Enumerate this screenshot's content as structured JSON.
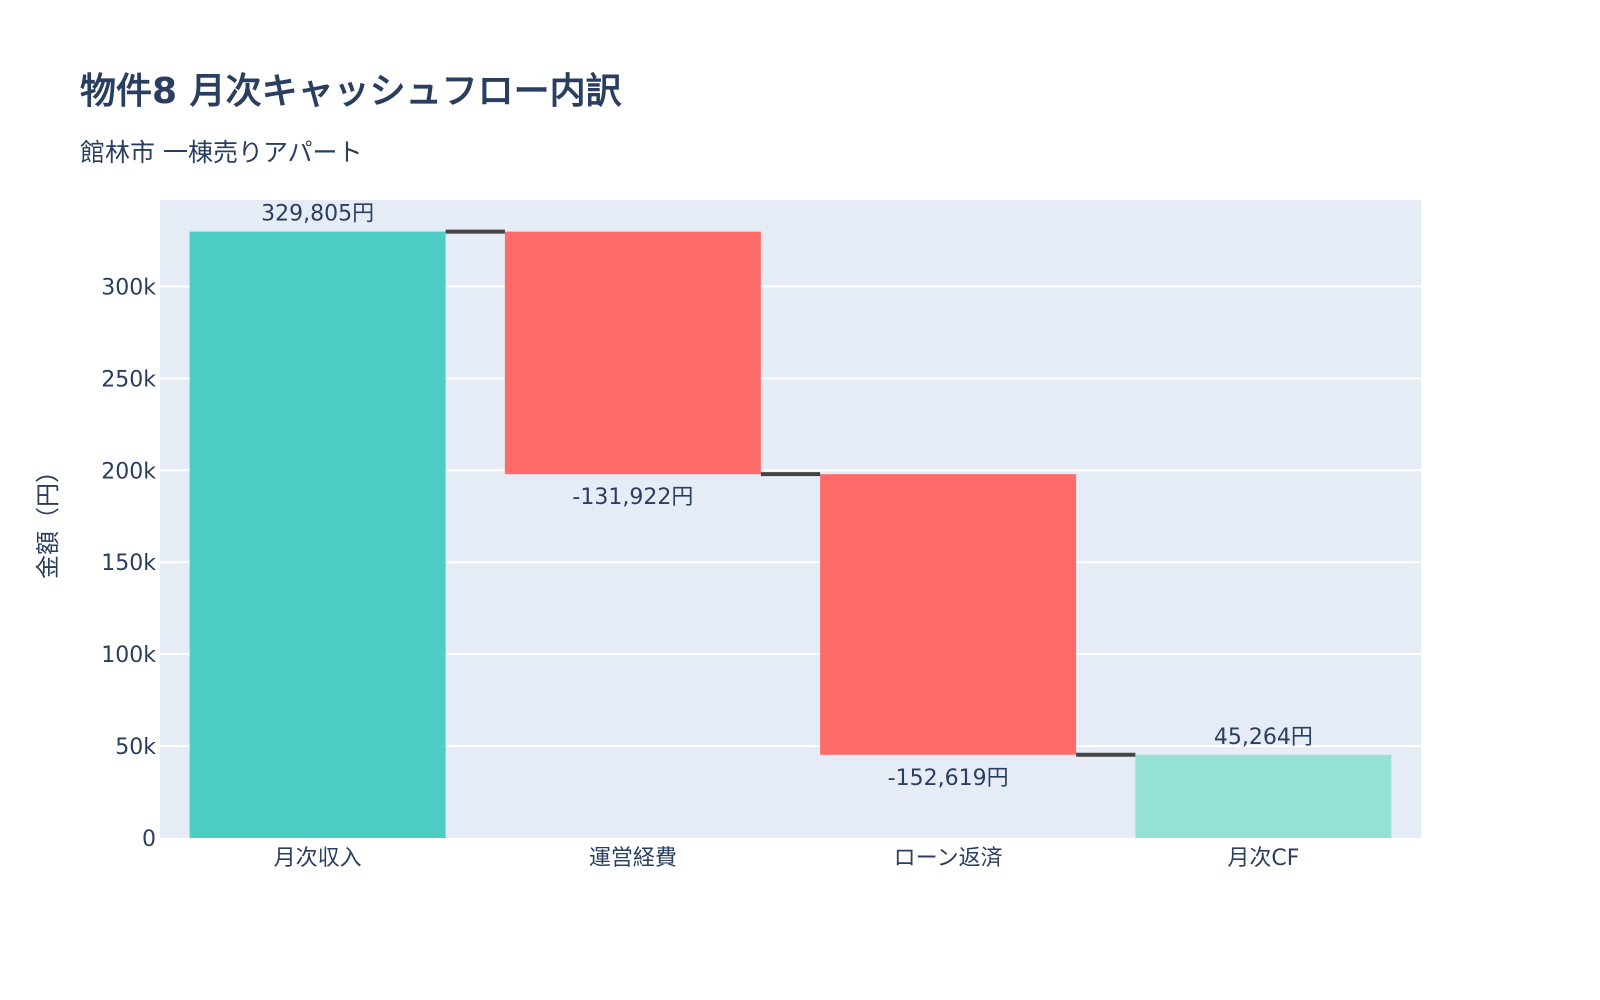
{
  "chart_data": {
    "type": "waterfall",
    "title": "物件8 月次キャッシュフロー内訳",
    "subtitle": "館林市 一棟売りアパート",
    "xlabel": "",
    "ylabel": "金額（円）",
    "categories": [
      "月次収入",
      "運営経費",
      "ローン返済",
      "月次CF"
    ],
    "values": [
      329805,
      -131922,
      -152619,
      45264
    ],
    "measures": [
      "absolute",
      "relative",
      "relative",
      "total"
    ],
    "data_labels": [
      "329,805円",
      "-131,922円",
      "-152,619円",
      "45,264円"
    ],
    "ylim": [
      0,
      347000
    ],
    "yticks": [
      0,
      50000,
      100000,
      150000,
      200000,
      250000,
      300000
    ],
    "ytick_labels": [
      "0",
      "50k",
      "100k",
      "150k",
      "200k",
      "250k",
      "300k"
    ],
    "grid": true,
    "colors": {
      "increasing": "#4ecdc4",
      "decreasing": "#ff6b6b",
      "total": "#95e1d3",
      "connector": "#444444",
      "plot_bg": "#e5ecf6"
    }
  }
}
